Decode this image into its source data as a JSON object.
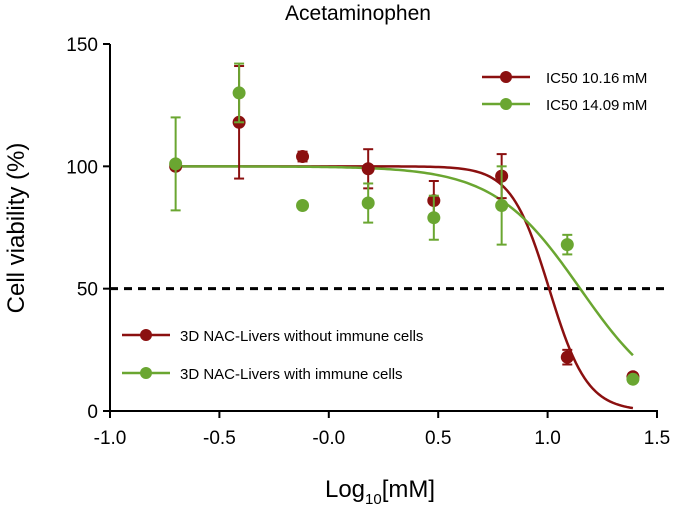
{
  "chart_data": {
    "type": "scatter",
    "title": "Acetaminophen",
    "xlabel": "Log",
    "xlabel_sub": "10",
    "xlabel_unit": "[mM]",
    "ylabel": "Cell viability (%)",
    "xlim": [
      -1.0,
      1.5
    ],
    "ylim": [
      0,
      150
    ],
    "xticks": [
      -1.0,
      -0.5,
      0.0,
      0.5,
      1.0,
      1.5
    ],
    "xtick_labels": [
      "-1.0",
      "-0.5",
      "-0.0",
      "0.5",
      "1.0",
      "1.5"
    ],
    "yticks": [
      0,
      50,
      100,
      150
    ],
    "ytick_labels": [
      "0",
      "50",
      "100",
      "150"
    ],
    "grid": false,
    "reference_line": {
      "y": 50,
      "style": "dashed",
      "color": "#000000"
    },
    "ic50_legend_position": "top-right",
    "series_legend_position": "bottom-left",
    "series": [
      {
        "name": "3D NAC-Livers without immune cells",
        "ic50_label": "IC50 10.16",
        "ic50_unit": "mM",
        "color": "#8b1010",
        "x": [
          -0.7,
          -0.41,
          -0.12,
          0.18,
          0.48,
          0.79,
          1.09,
          1.39
        ],
        "y": [
          100,
          118,
          104,
          99,
          86,
          96,
          22,
          14
        ],
        "err": [
          0,
          23,
          2,
          8,
          8,
          9,
          3,
          1
        ],
        "fit": {
          "top": 100,
          "bottom": 0,
          "log_ic50": 1.007,
          "hill": 5
        }
      },
      {
        "name": "3D NAC-Livers with immune cells",
        "ic50_label": "IC50 14.09",
        "ic50_unit": "mM",
        "color": "#6aa631",
        "x": [
          -0.7,
          -0.41,
          -0.12,
          0.18,
          0.48,
          0.79,
          1.09,
          1.39
        ],
        "y": [
          101,
          130,
          84,
          85,
          79,
          84,
          68,
          13
        ],
        "err": [
          19,
          12,
          0,
          8,
          9,
          16,
          4,
          1
        ],
        "fit": {
          "top": 100,
          "bottom": 0,
          "log_ic50": 1.149,
          "hill": 2.2
        }
      }
    ]
  }
}
